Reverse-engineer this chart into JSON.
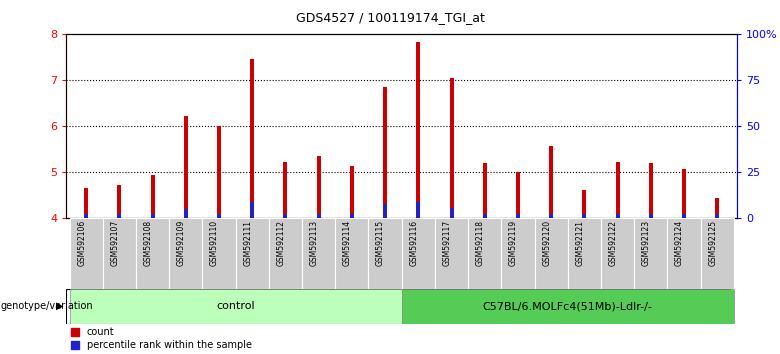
{
  "title": "GDS4527 / 100119174_TGI_at",
  "samples": [
    "GSM592106",
    "GSM592107",
    "GSM592108",
    "GSM592109",
    "GSM592110",
    "GSM592111",
    "GSM592112",
    "GSM592113",
    "GSM592114",
    "GSM592115",
    "GSM592116",
    "GSM592117",
    "GSM592118",
    "GSM592119",
    "GSM592120",
    "GSM592121",
    "GSM592122",
    "GSM592123",
    "GSM592124",
    "GSM592125"
  ],
  "count_values": [
    4.65,
    4.72,
    4.93,
    6.22,
    6.0,
    7.45,
    5.2,
    5.35,
    5.12,
    6.85,
    7.82,
    7.03,
    5.18,
    5.0,
    5.55,
    4.6,
    5.2,
    5.18,
    5.05,
    4.42
  ],
  "percentile_values": [
    4.08,
    4.08,
    4.08,
    4.18,
    4.08,
    4.35,
    4.08,
    4.08,
    4.08,
    4.3,
    4.35,
    4.22,
    4.08,
    4.08,
    4.08,
    4.08,
    4.08,
    4.08,
    4.08,
    4.08
  ],
  "ylim_left": [
    4.0,
    8.0
  ],
  "ylim_right": [
    0,
    100
  ],
  "yticks_left": [
    4,
    5,
    6,
    7,
    8
  ],
  "yticks_right": [
    0,
    25,
    50,
    75,
    100
  ],
  "ytick_labels_right": [
    "0",
    "25",
    "50",
    "75",
    "100%"
  ],
  "bar_color_red": "#cc0000",
  "bar_color_blue": "#2222cc",
  "group1_label": "control",
  "group1_count": 10,
  "group2_label": "C57BL/6.MOLFc4(51Mb)-Ldlr-/-",
  "group2_count": 10,
  "group1_bg": "#bbffbb",
  "group2_bg": "#55cc55",
  "genotype_label": "genotype/variation",
  "legend_count": "count",
  "legend_pct": "percentile rank within the sample",
  "dotted_yticks": [
    5,
    6,
    7
  ],
  "bar_width": 0.12,
  "cell_bg": "#cccccc"
}
